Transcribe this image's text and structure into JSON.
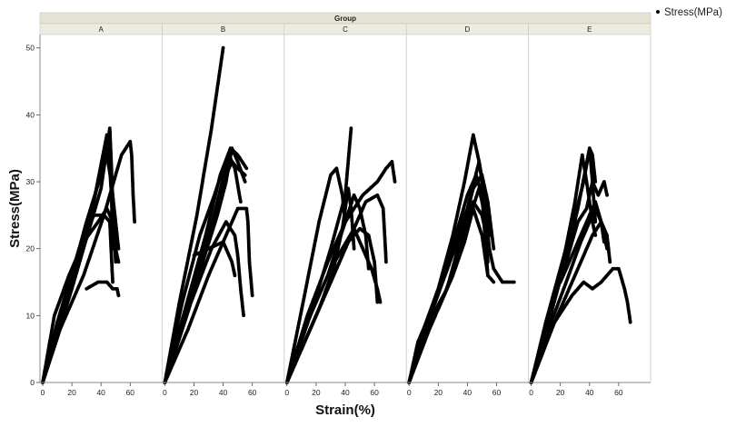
{
  "chart_data": {
    "type": "scatter",
    "group_header": "Group",
    "panels": [
      "A",
      "B",
      "C",
      "D",
      "E"
    ],
    "xlabel": "Strain(%)",
    "ylabel": "Stress(MPa)",
    "xlim": [
      0,
      80
    ],
    "ylim": [
      0,
      52
    ],
    "x_ticks": [
      0,
      20,
      40,
      60
    ],
    "y_ticks": [
      0,
      10,
      20,
      30,
      40,
      50
    ],
    "legend": {
      "placement": "top-right",
      "label": "Stress(MPa)"
    },
    "grid": false,
    "marker_color": "#000000",
    "curves": {
      "A": [
        [
          [
            0,
            0
          ],
          [
            20,
            14
          ],
          [
            40,
            29
          ],
          [
            46,
            38
          ],
          [
            47,
            33
          ],
          [
            48,
            27
          ],
          [
            49,
            22
          ],
          [
            50,
            18
          ]
        ],
        [
          [
            0,
            0
          ],
          [
            18,
            14
          ],
          [
            35,
            27
          ],
          [
            44,
            37
          ],
          [
            46,
            32
          ],
          [
            48,
            25
          ],
          [
            50,
            19
          ]
        ],
        [
          [
            0,
            0
          ],
          [
            15,
            12
          ],
          [
            30,
            24
          ],
          [
            40,
            31
          ],
          [
            45,
            35
          ],
          [
            47,
            30
          ],
          [
            48,
            20
          ]
        ],
        [
          [
            0,
            0
          ],
          [
            10,
            9
          ],
          [
            25,
            20
          ],
          [
            35,
            25
          ],
          [
            42,
            25
          ],
          [
            46,
            24
          ],
          [
            48,
            15
          ]
        ],
        [
          [
            0,
            0
          ],
          [
            8,
            10
          ],
          [
            18,
            16
          ],
          [
            28,
            21
          ],
          [
            38,
            24
          ],
          [
            44,
            26
          ],
          [
            48,
            24
          ],
          [
            50,
            20
          ],
          [
            52,
            18
          ]
        ],
        [
          [
            0,
            0
          ],
          [
            12,
            8
          ],
          [
            28,
            16
          ],
          [
            42,
            25
          ],
          [
            54,
            34
          ],
          [
            60,
            36
          ],
          [
            61,
            34
          ],
          [
            62,
            28
          ],
          [
            63,
            24
          ]
        ],
        [
          [
            30,
            14
          ],
          [
            38,
            15
          ],
          [
            44,
            15
          ],
          [
            48,
            14
          ],
          [
            51,
            14
          ],
          [
            52,
            13
          ]
        ],
        [
          [
            20,
            15
          ],
          [
            30,
            22
          ],
          [
            38,
            30
          ],
          [
            44,
            34
          ],
          [
            47,
            30
          ],
          [
            50,
            24
          ],
          [
            52,
            20
          ]
        ]
      ],
      "B": [
        [
          [
            0,
            0
          ],
          [
            10,
            12
          ],
          [
            22,
            25
          ],
          [
            32,
            38
          ],
          [
            40,
            50
          ]
        ],
        [
          [
            0,
            0
          ],
          [
            14,
            11
          ],
          [
            28,
            22
          ],
          [
            38,
            31
          ],
          [
            45,
            35
          ],
          [
            50,
            34
          ],
          [
            56,
            32
          ]
        ],
        [
          [
            0,
            0
          ],
          [
            15,
            10
          ],
          [
            30,
            22
          ],
          [
            40,
            30
          ],
          [
            46,
            33
          ],
          [
            50,
            32
          ],
          [
            55,
            31
          ]
        ],
        [
          [
            0,
            0
          ],
          [
            12,
            8
          ],
          [
            25,
            17
          ],
          [
            36,
            27
          ],
          [
            44,
            34
          ],
          [
            48,
            32
          ],
          [
            52,
            27
          ]
        ],
        [
          [
            0,
            0
          ],
          [
            16,
            8
          ],
          [
            30,
            16
          ],
          [
            40,
            21
          ],
          [
            50,
            26
          ],
          [
            56,
            26
          ],
          [
            57,
            24
          ],
          [
            58,
            18
          ],
          [
            60,
            13
          ]
        ],
        [
          [
            0,
            0
          ],
          [
            12,
            12
          ],
          [
            24,
            22
          ],
          [
            34,
            28
          ],
          [
            40,
            32
          ]
        ],
        [
          [
            0,
            0
          ],
          [
            18,
            12
          ],
          [
            32,
            20
          ],
          [
            42,
            24
          ],
          [
            48,
            22
          ],
          [
            50,
            19
          ],
          [
            52,
            14
          ],
          [
            54,
            10
          ]
        ],
        [
          [
            20,
            19
          ],
          [
            30,
            20
          ],
          [
            40,
            21
          ],
          [
            46,
            18
          ],
          [
            48,
            16
          ]
        ],
        [
          [
            0,
            0
          ],
          [
            14,
            10
          ],
          [
            26,
            18
          ],
          [
            36,
            25
          ],
          [
            42,
            30
          ],
          [
            46,
            35
          ],
          [
            50,
            33
          ],
          [
            55,
            30
          ]
        ]
      ],
      "C": [
        [
          [
            0,
            0
          ],
          [
            12,
            13
          ],
          [
            22,
            24
          ],
          [
            30,
            31
          ],
          [
            34,
            32
          ],
          [
            36,
            30
          ],
          [
            38,
            28
          ],
          [
            40,
            24
          ]
        ],
        [
          [
            0,
            0
          ],
          [
            16,
            10
          ],
          [
            30,
            20
          ],
          [
            40,
            28
          ],
          [
            44,
            38
          ]
        ],
        [
          [
            0,
            0
          ],
          [
            14,
            9
          ],
          [
            28,
            16
          ],
          [
            40,
            24
          ],
          [
            46,
            28
          ],
          [
            50,
            26
          ],
          [
            54,
            22
          ],
          [
            56,
            17
          ]
        ],
        [
          [
            0,
            0
          ],
          [
            16,
            8
          ],
          [
            30,
            15
          ],
          [
            42,
            21
          ],
          [
            50,
            23
          ],
          [
            56,
            22
          ],
          [
            60,
            18
          ],
          [
            62,
            12
          ]
        ],
        [
          [
            0,
            0
          ],
          [
            18,
            9
          ],
          [
            34,
            17
          ],
          [
            46,
            23
          ],
          [
            54,
            27
          ],
          [
            62,
            28
          ],
          [
            66,
            26
          ],
          [
            68,
            18
          ]
        ],
        [
          [
            0,
            0
          ],
          [
            14,
            10
          ],
          [
            28,
            18
          ],
          [
            40,
            24
          ],
          [
            52,
            28
          ],
          [
            62,
            30
          ],
          [
            68,
            32
          ],
          [
            72,
            33
          ],
          [
            74,
            30
          ]
        ],
        [
          [
            10,
            5
          ],
          [
            22,
            11
          ],
          [
            32,
            17
          ],
          [
            38,
            23
          ],
          [
            42,
            29
          ],
          [
            44,
            26
          ],
          [
            46,
            20
          ]
        ],
        [
          [
            30,
            17
          ],
          [
            38,
            20
          ],
          [
            46,
            23
          ],
          [
            52,
            20
          ],
          [
            58,
            17
          ],
          [
            62,
            14
          ],
          [
            64,
            12
          ]
        ]
      ],
      "D": [
        [
          [
            0,
            0
          ],
          [
            8,
            6
          ],
          [
            16,
            10
          ],
          [
            26,
            14
          ],
          [
            36,
            22
          ],
          [
            44,
            27
          ],
          [
            50,
            25
          ],
          [
            54,
            21
          ],
          [
            58,
            17
          ],
          [
            64,
            15
          ],
          [
            72,
            15
          ]
        ],
        [
          [
            0,
            0
          ],
          [
            10,
            7
          ],
          [
            20,
            14
          ],
          [
            30,
            22
          ],
          [
            38,
            30
          ],
          [
            44,
            37
          ],
          [
            48,
            33
          ],
          [
            52,
            27
          ],
          [
            55,
            20
          ]
        ],
        [
          [
            0,
            0
          ],
          [
            12,
            8
          ],
          [
            22,
            15
          ],
          [
            32,
            22
          ],
          [
            40,
            28
          ],
          [
            46,
            31
          ],
          [
            50,
            28
          ],
          [
            52,
            22
          ],
          [
            54,
            16
          ]
        ],
        [
          [
            0,
            0
          ],
          [
            14,
            8
          ],
          [
            24,
            13
          ],
          [
            34,
            19
          ],
          [
            42,
            25
          ],
          [
            48,
            29
          ],
          [
            52,
            25
          ],
          [
            54,
            18
          ]
        ],
        [
          [
            0,
            0
          ],
          [
            6,
            6
          ],
          [
            12,
            9
          ],
          [
            20,
            11
          ],
          [
            30,
            16
          ],
          [
            38,
            21
          ],
          [
            44,
            26
          ],
          [
            50,
            22
          ],
          [
            54,
            16
          ],
          [
            58,
            15
          ]
        ],
        [
          [
            0,
            0
          ],
          [
            10,
            8
          ],
          [
            20,
            14
          ],
          [
            30,
            20
          ],
          [
            40,
            26
          ],
          [
            48,
            33
          ],
          [
            52,
            28
          ],
          [
            56,
            22
          ]
        ],
        [
          [
            0,
            0
          ],
          [
            8,
            7
          ],
          [
            18,
            12
          ],
          [
            28,
            18
          ],
          [
            38,
            24
          ],
          [
            44,
            29
          ],
          [
            50,
            31
          ],
          [
            54,
            27
          ],
          [
            58,
            20
          ]
        ]
      ],
      "E": [
        [
          [
            0,
            0
          ],
          [
            10,
            8
          ],
          [
            20,
            16
          ],
          [
            30,
            27
          ],
          [
            35,
            34
          ],
          [
            38,
            30
          ],
          [
            42,
            24
          ],
          [
            44,
            22
          ]
        ],
        [
          [
            0,
            0
          ],
          [
            12,
            9
          ],
          [
            22,
            17
          ],
          [
            32,
            26
          ],
          [
            40,
            35
          ],
          [
            42,
            30
          ],
          [
            44,
            24
          ]
        ],
        [
          [
            0,
            0
          ],
          [
            12,
            8
          ],
          [
            24,
            15
          ],
          [
            34,
            21
          ],
          [
            40,
            24
          ],
          [
            44,
            26
          ],
          [
            48,
            24
          ],
          [
            52,
            20
          ]
        ],
        [
          [
            0,
            0
          ],
          [
            14,
            8
          ],
          [
            26,
            14
          ],
          [
            36,
            19
          ],
          [
            42,
            22
          ],
          [
            48,
            24
          ],
          [
            52,
            22
          ],
          [
            54,
            18
          ]
        ],
        [
          [
            0,
            0
          ],
          [
            16,
            9
          ],
          [
            28,
            13
          ],
          [
            36,
            15
          ],
          [
            42,
            14
          ],
          [
            48,
            15
          ],
          [
            56,
            17
          ],
          [
            60,
            17
          ],
          [
            64,
            14
          ],
          [
            66,
            12
          ],
          [
            68,
            9
          ]
        ],
        [
          [
            0,
            0
          ],
          [
            12,
            10
          ],
          [
            24,
            18
          ],
          [
            32,
            24
          ],
          [
            38,
            26
          ],
          [
            42,
            30
          ],
          [
            46,
            28
          ],
          [
            50,
            30
          ],
          [
            52,
            28
          ]
        ],
        [
          [
            0,
            0
          ],
          [
            10,
            9
          ],
          [
            20,
            17
          ],
          [
            30,
            25
          ],
          [
            36,
            30
          ],
          [
            40,
            35
          ],
          [
            42,
            34
          ],
          [
            44,
            30
          ]
        ],
        [
          [
            20,
            15
          ],
          [
            30,
            20
          ],
          [
            38,
            24
          ],
          [
            44,
            27
          ],
          [
            48,
            24
          ],
          [
            50,
            21
          ]
        ]
      ]
    }
  }
}
